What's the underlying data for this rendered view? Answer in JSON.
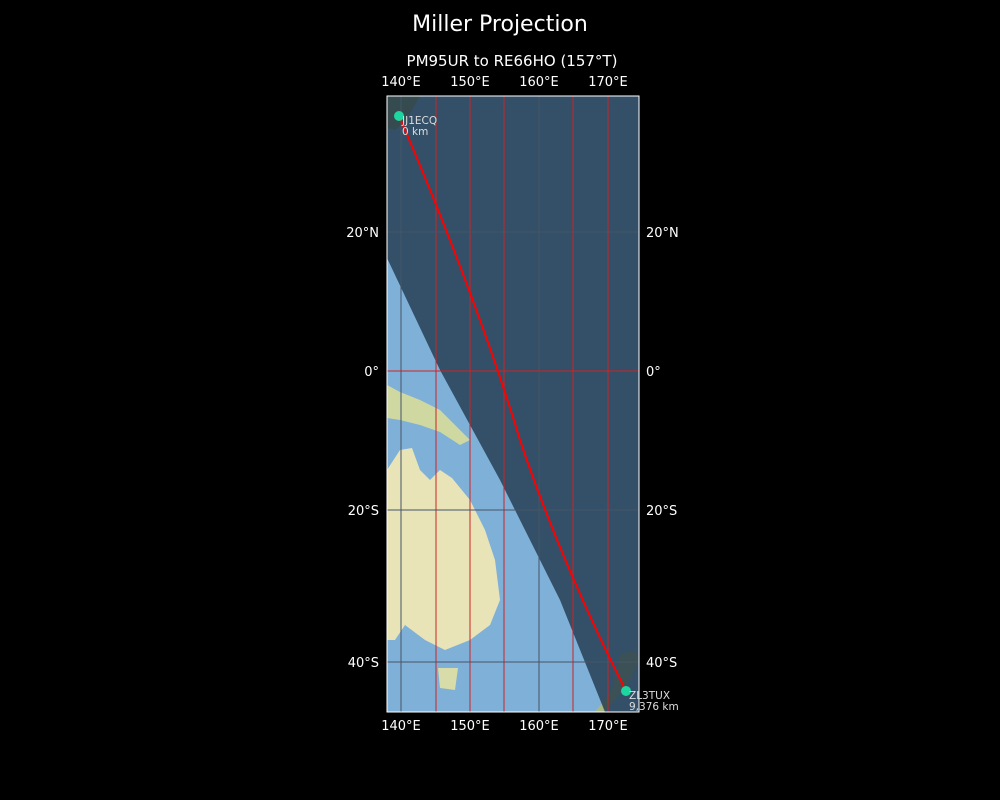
{
  "title": "Miller Projection",
  "subtitle": "PM95UR to RE66HO (157°T)",
  "colors": {
    "path": "#ff0000",
    "station": "#1dd6a0",
    "grid_major": "#cc2222",
    "ocean": "#7fb0d8",
    "night": "#2e4a5e",
    "land": "#e8e4b8"
  },
  "axes": {
    "lon_ticks": [
      "140°E",
      "150°E",
      "160°E",
      "170°E"
    ],
    "lat_ticks": [
      "20°N",
      "0°",
      "20°S",
      "40°S"
    ]
  },
  "stations": [
    {
      "call": "JJ1ECQ",
      "distance": "0 km",
      "lat": 35.7,
      "lon": 139.7
    },
    {
      "call": "ZL3TUX",
      "distance": "9,376 km",
      "lat": -43.5,
      "lon": 172.6
    }
  ]
}
